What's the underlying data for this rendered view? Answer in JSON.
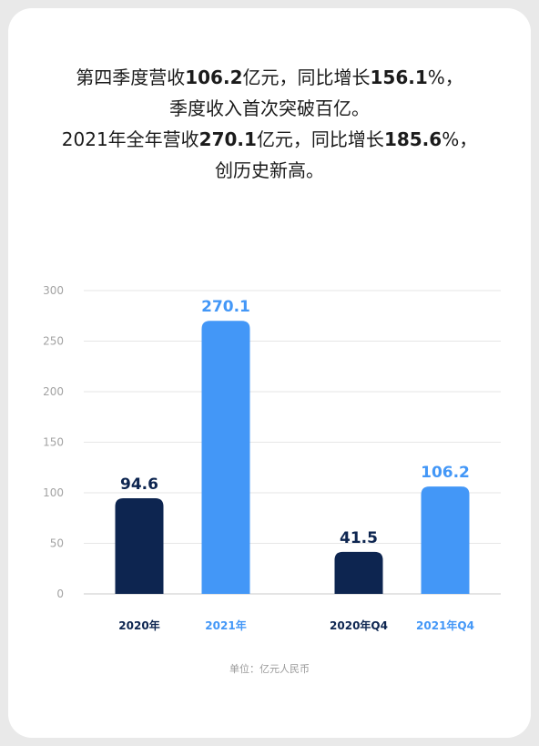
{
  "headline": {
    "line1": [
      "第四季度营收",
      "106.2",
      "亿元，同比增长",
      "156.1",
      "%，"
    ],
    "line2": "季度收入首次突破百亿。",
    "line3": [
      "2021年全年营收",
      "270.1",
      "亿元，同比增长",
      "185.6",
      "%，"
    ],
    "line4": "创历史新高。"
  },
  "chart_data": {
    "type": "bar",
    "categories": [
      "2020年",
      "2021年",
      "2020年Q4",
      "2021年Q4"
    ],
    "values": [
      94.6,
      270.1,
      41.5,
      106.2
    ],
    "value_labels": [
      "94.6",
      "270.1",
      "41.5",
      "106.2"
    ],
    "colors": [
      "#0d2550",
      "#4397f7",
      "#0d2550",
      "#4397f7"
    ],
    "ylim": [
      0,
      300
    ],
    "yticks": [
      "0",
      "50",
      "100",
      "150",
      "200",
      "250",
      "300"
    ],
    "ytick_values": [
      0,
      50,
      100,
      150,
      200,
      250,
      300
    ],
    "grid": true,
    "title": "",
    "xlabel": "",
    "ylabel": ""
  },
  "unit_note": "单位：亿元人民币"
}
